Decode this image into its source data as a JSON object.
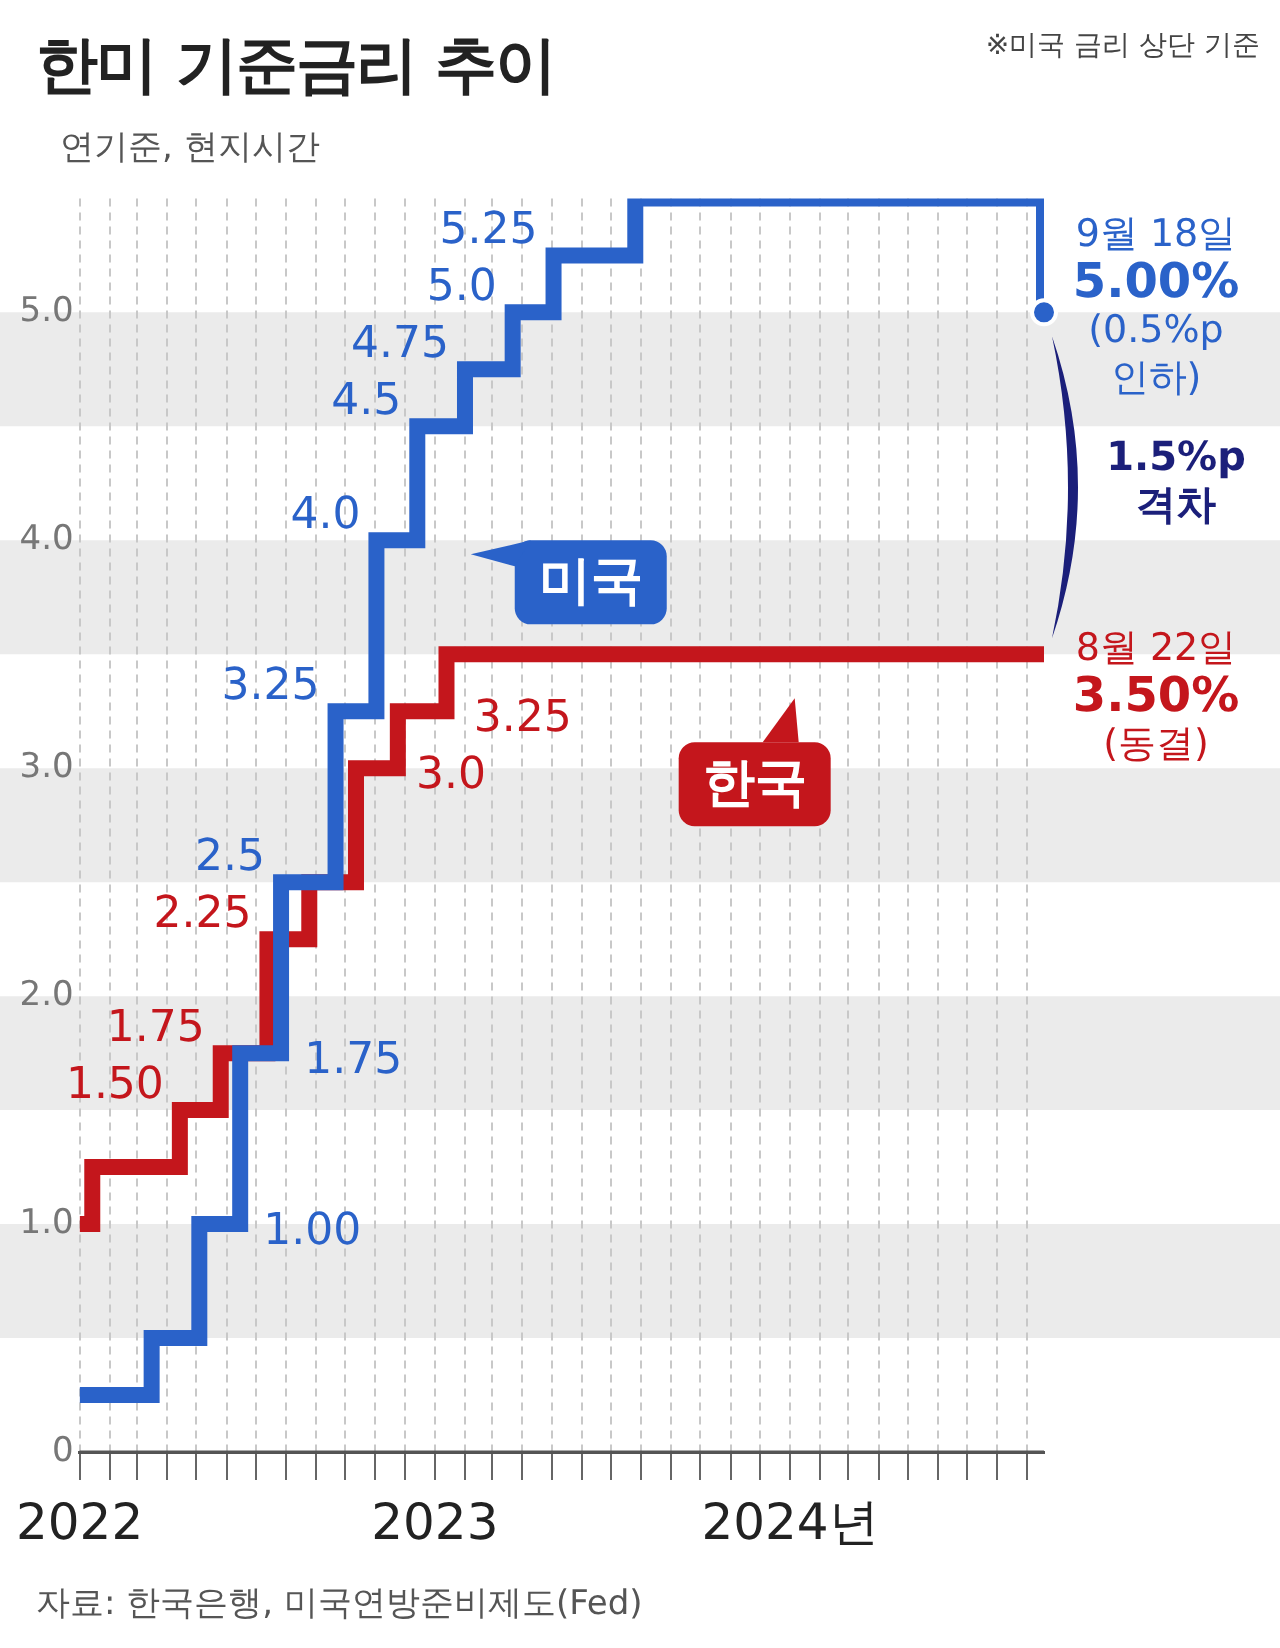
{
  "chart_data": {
    "type": "step",
    "title": "한미 기준금리 추이",
    "subtitle": "연기준, 현지시간",
    "annotations": [
      "※미국 금리 상단 기준",
      {
        "text": "9월 18일\n5.00%\n(0.5%p\n인하)",
        "x": "2024-09-18",
        "y": 5.0
      },
      "1.5%p\n격차",
      {
        "text": "8월 22일\n3.50%\n(동결)",
        "x": "2024-09-18",
        "y": 3.5
      },
      "자료: 한국은행, 미국연방준비제도(Fed)"
    ],
    "series": [
      {
        "name": "미국",
        "color": "#2a62c9",
        "x": [
          "2022-01-01",
          "2022-03-16",
          "2022-05-04",
          "2022-06-15",
          "2022-07-27",
          "2022-09-21",
          "2022-11-02",
          "2022-12-14",
          "2023-02-01",
          "2023-03-22",
          "2023-05-03",
          "2023-07-26",
          "2024-09-18"
        ],
        "values": [
          0.25,
          0.5,
          1.0,
          1.75,
          2.5,
          3.25,
          4.0,
          4.5,
          4.75,
          5.0,
          5.25,
          5.5,
          5.0
        ],
        "value_labels": [
          null,
          null,
          "1.00",
          "1.75",
          "2.5",
          "3.25",
          "4.0",
          "4.5",
          "4.75",
          "5.0",
          "5.25",
          null,
          null
        ]
      },
      {
        "name": "한국",
        "color": "#c4161c",
        "x": [
          "2022-01-01",
          "2022-01-14",
          "2022-04-14",
          "2022-05-26",
          "2022-07-13",
          "2022-08-25",
          "2022-10-12",
          "2022-11-24",
          "2023-01-13",
          "2024-09-18"
        ],
        "values": [
          1.0,
          1.25,
          1.5,
          1.75,
          2.25,
          2.5,
          3.0,
          3.25,
          3.5,
          3.5
        ],
        "value_labels": [
          null,
          null,
          "1.50",
          "1.75",
          "2.25",
          null,
          "3.0",
          "3.25",
          null,
          null
        ]
      }
    ],
    "xlim": [
      "2022-01-01",
      "2024-09-18"
    ],
    "xticks": [
      {
        "value": "2022-01-01",
        "label": "2022"
      },
      {
        "value": "2022-02-01",
        "label": null
      },
      {
        "value": "2022-03-01",
        "label": null
      },
      {
        "value": "2022-04-01",
        "label": null
      },
      {
        "value": "2022-05-01",
        "label": null
      },
      {
        "value": "2022-06-01",
        "label": null
      },
      {
        "value": "2022-07-01",
        "label": null
      },
      {
        "value": "2022-08-01",
        "label": null
      },
      {
        "value": "2022-09-01",
        "label": null
      },
      {
        "value": "2022-10-01",
        "label": null
      },
      {
        "value": "2022-11-01",
        "label": null
      },
      {
        "value": "2022-12-01",
        "label": null
      },
      {
        "value": "2023-01-01",
        "label": "2023"
      },
      {
        "value": "2023-02-01",
        "label": null
      },
      {
        "value": "2023-03-01",
        "label": null
      },
      {
        "value": "2023-04-01",
        "label": null
      },
      {
        "value": "2023-05-01",
        "label": null
      },
      {
        "value": "2023-06-01",
        "label": null
      },
      {
        "value": "2023-07-01",
        "label": null
      },
      {
        "value": "2023-08-01",
        "label": null
      },
      {
        "value": "2023-09-01",
        "label": null
      },
      {
        "value": "2023-10-01",
        "label": null
      },
      {
        "value": "2023-11-01",
        "label": null
      },
      {
        "value": "2023-12-01",
        "label": null
      },
      {
        "value": "2024-01-01",
        "label": "2024년"
      },
      {
        "value": "2024-02-01",
        "label": null
      },
      {
        "value": "2024-03-01",
        "label": null
      },
      {
        "value": "2024-04-01",
        "label": null
      },
      {
        "value": "2024-05-01",
        "label": null
      },
      {
        "value": "2024-06-01",
        "label": null
      },
      {
        "value": "2024-07-01",
        "label": null
      },
      {
        "value": "2024-08-01",
        "label": null
      },
      {
        "value": "2024-09-01",
        "label": null
      }
    ],
    "ylim": [
      0,
      5.5
    ],
    "yticks": [
      0,
      {
        "value": 1,
        "label": "1.0"
      },
      {
        "value": 2,
        "label": "2.0"
      },
      {
        "value": 3,
        "label": "3.0"
      },
      {
        "value": 4,
        "label": "4.0"
      },
      {
        "value": 5,
        "label": "5.0"
      }
    ],
    "bands": [
      {
        "axis": "y",
        "from": 0.5,
        "to": 1.0,
        "color": "#ebebeb"
      },
      {
        "axis": "y",
        "from": 1.5,
        "to": 2.0,
        "color": "#ebebeb"
      },
      {
        "axis": "y",
        "from": 2.5,
        "to": 3.0,
        "color": "#ebebeb"
      },
      {
        "axis": "y",
        "from": 3.5,
        "to": 4.0,
        "color": "#ebebeb"
      },
      {
        "axis": "y",
        "from": 4.5,
        "to": 5.0,
        "color": "#ebebeb"
      }
    ],
    "grid": "x",
    "legend": "center"
  }
}
